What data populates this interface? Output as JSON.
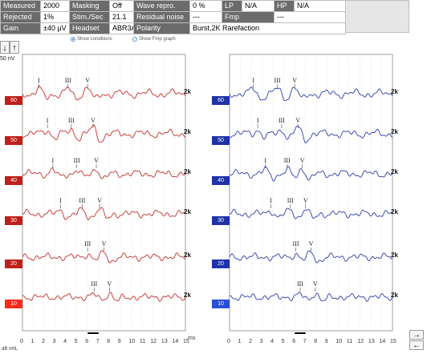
{
  "header": {
    "rows": [
      [
        {
          "label": "Measured",
          "value": "2000"
        },
        {
          "label": "Masking",
          "value": "Off"
        },
        {
          "label": "Wave repro.",
          "value": "0 %"
        },
        {
          "label": "LP",
          "value": "N/A"
        },
        {
          "label": "HP",
          "value": "N/A"
        }
      ],
      [
        {
          "label": "Rejected",
          "value": "1%"
        },
        {
          "label": "Stim./Sec",
          "value": "21.1"
        },
        {
          "label": "Residual noise",
          "value": "---"
        },
        {
          "label": "Fmp",
          "value": "---"
        }
      ],
      [
        {
          "label": "Gain",
          "value": "±40 µV"
        },
        {
          "label": "Headset",
          "value": "ABR3A"
        },
        {
          "label": "Polarity",
          "value": "Burst,2K Rarefaction"
        }
      ]
    ]
  },
  "options": {
    "show_conditions": "Show conditions",
    "show_fmp_graph": "Show Fmp graph",
    "show_conditions_selected": true
  },
  "scale_label": "50 nV",
  "axis": {
    "unit": "ms",
    "level_unit": "dB nHL",
    "ticks": [
      "0",
      "1",
      "2",
      "3",
      "4",
      "5",
      "6",
      "7",
      "8",
      "9",
      "10",
      "11",
      "12",
      "13",
      "14",
      "15"
    ]
  },
  "buttons": {
    "down": "↓",
    "up": "↑",
    "right": "→",
    "left": "←"
  },
  "colors": {
    "left_ear": "#c0201a",
    "right_ear": "#1f33a8",
    "left_trace": "#c4302a",
    "right_trace": "#2b3fa8"
  },
  "left_traces": [
    {
      "level": "60",
      "side": "2k",
      "peaks": [
        {
          "label": "I",
          "ms": 1.5
        },
        {
          "label": "III",
          "ms": 4.2
        },
        {
          "label": "V",
          "ms": 6.0
        }
      ]
    },
    {
      "level": "50",
      "side": "2k",
      "peaks": [
        {
          "label": "I",
          "ms": 2.3
        },
        {
          "label": "III",
          "ms": 4.5
        },
        {
          "label": "V",
          "ms": 6.5
        }
      ]
    },
    {
      "level": "40",
      "side": "2k",
      "peaks": [
        {
          "label": "I",
          "ms": 2.8
        },
        {
          "label": "III",
          "ms": 5.0
        },
        {
          "label": "V",
          "ms": 6.8
        }
      ]
    },
    {
      "level": "30",
      "side": "2k",
      "peaks": [
        {
          "label": "I",
          "ms": 3.5
        },
        {
          "label": "III",
          "ms": 5.5
        },
        {
          "label": "V",
          "ms": 7.1
        }
      ]
    },
    {
      "level": "20",
      "side": "2k",
      "peaks": [
        {
          "label": "III",
          "ms": 6.0
        },
        {
          "label": "V",
          "ms": 7.5
        }
      ]
    },
    {
      "level": "10",
      "side": "2k",
      "peaks": [
        {
          "label": "III",
          "ms": 6.6
        },
        {
          "label": "V",
          "ms": 8.0
        }
      ]
    }
  ],
  "right_traces": [
    {
      "level": "60",
      "side": "2k",
      "peaks": [
        {
          "label": "I",
          "ms": 2.2
        },
        {
          "label": "III",
          "ms": 4.4
        },
        {
          "label": "V",
          "ms": 6.0
        }
      ]
    },
    {
      "level": "50",
      "side": "2k",
      "peaks": [
        {
          "label": "I",
          "ms": 2.6
        },
        {
          "label": "III",
          "ms": 4.8
        },
        {
          "label": "V",
          "ms": 6.3
        }
      ]
    },
    {
      "level": "40",
      "side": "2k",
      "peaks": [
        {
          "label": "I",
          "ms": 3.3
        },
        {
          "label": "III",
          "ms": 5.3
        },
        {
          "label": "V",
          "ms": 6.7
        }
      ]
    },
    {
      "level": "30",
      "side": "2k",
      "peaks": [
        {
          "label": "I",
          "ms": 3.8
        },
        {
          "label": "III",
          "ms": 5.6
        },
        {
          "label": "V",
          "ms": 7.0
        }
      ]
    },
    {
      "level": "20",
      "side": "2k",
      "peaks": [
        {
          "label": "III",
          "ms": 6.1
        },
        {
          "label": "V",
          "ms": 7.5
        }
      ]
    },
    {
      "level": "10",
      "side": "2k",
      "peaks": [
        {
          "label": "III",
          "ms": 6.5
        },
        {
          "label": "V",
          "ms": 7.9
        }
      ]
    }
  ]
}
